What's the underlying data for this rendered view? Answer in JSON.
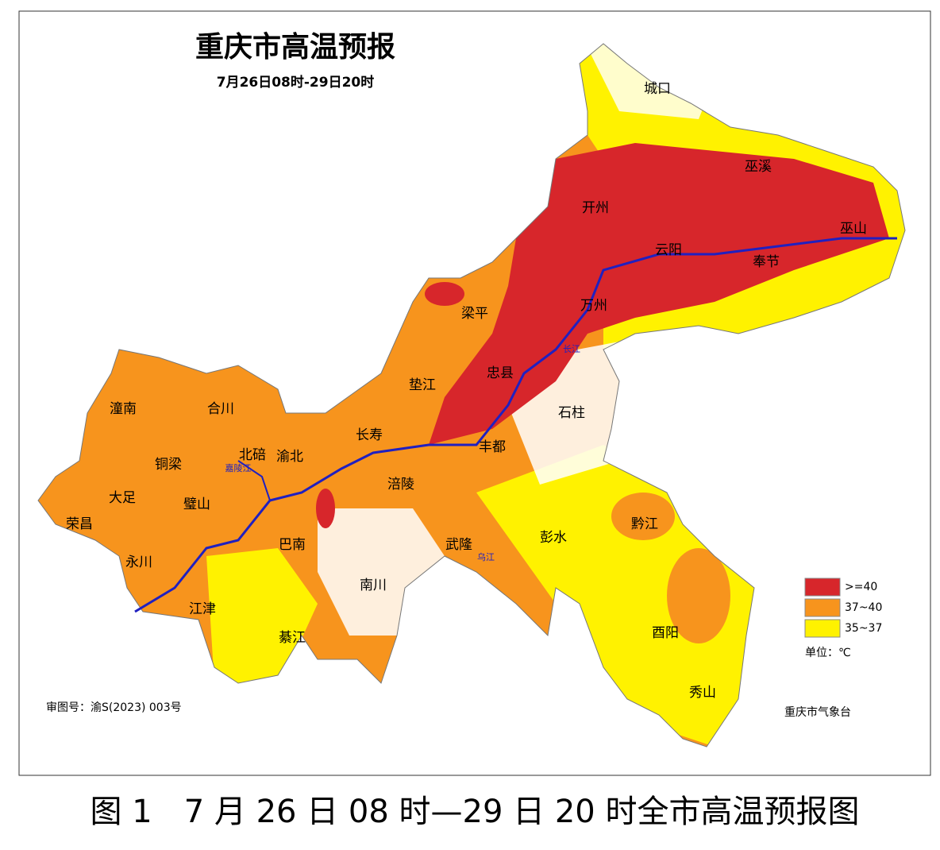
{
  "header": {
    "title": "重庆市高温预报",
    "subtitle": "7月26日08时-29日20时"
  },
  "districts": [
    "城口",
    "巫溪",
    "巫山",
    "开州",
    "云阳",
    "奉节",
    "万州",
    "梁平",
    "忠县",
    "垫江",
    "石柱",
    "丰都",
    "长寿",
    "涪陵",
    "潼南",
    "合川",
    "铜梁",
    "北碚",
    "渝北",
    "大足",
    "璧山",
    "荣昌",
    "永川",
    "巴南",
    "江津",
    "綦江",
    "南川",
    "武隆",
    "彭水",
    "黔江",
    "酉阳",
    "秀山"
  ],
  "rivers": [
    "嘉陵江",
    "乌江",
    "长江"
  ],
  "legend": {
    "items": [
      {
        "label": ">=40",
        "color": "#d7262b"
      },
      {
        "label": "37~40",
        "color": "#f7941d"
      },
      {
        "label": "35~37",
        "color": "#fff200"
      }
    ],
    "unit": "单位：℃"
  },
  "footer": {
    "approval": "审图号：渝S(2023) 003号",
    "agency": "重庆市气象台"
  },
  "caption": "图 1　7 月 26 日 08 时—29 日 20 时全市高温预报图"
}
